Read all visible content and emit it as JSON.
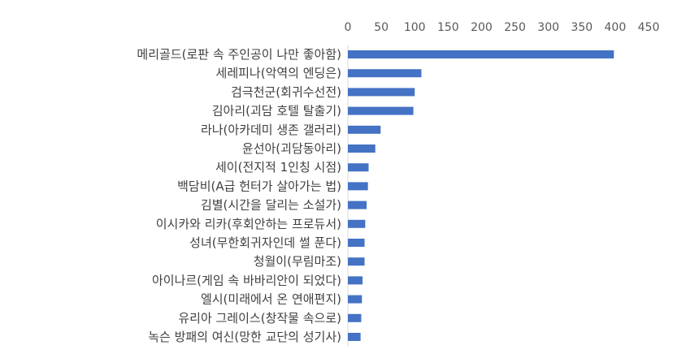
{
  "chart_data": {
    "type": "bar",
    "orientation": "horizontal",
    "title": "",
    "xlabel": "",
    "ylabel": "",
    "xlim": [
      0,
      450
    ],
    "x_ticks": [
      0,
      50,
      100,
      150,
      200,
      250,
      300,
      350,
      400,
      450
    ],
    "x_axis_position": "top",
    "grid": false,
    "legend": "none",
    "bar_color": "#4472C4",
    "categories": [
      "메리골드(로판 속 주인공이 나만 좋아함)",
      "세레피나(악역의 엔딩은)",
      "검극천군(회귀수선전)",
      "김아리(괴담 호텔 탈출기)",
      "라나(아카데미 생존 갤러리)",
      "윤선아(괴담동아리)",
      "세이(전지적 1인칭 시점)",
      "백담비(A급 헌터가 살아가는 법)",
      "김별(시간을 달리는 소설가)",
      "이시카와 리카(후회안하는 프로듀서)",
      "성녀(무한회귀자인데 썰 푼다)",
      "청월이(무림마조)",
      "아이나르(게임 속 바바리안이 되었다)",
      "엘시(미래에서 온 연애편지)",
      "유리아 그레이스(창작물 속으로)",
      "녹슨 방패의 여신(망한 교단의 성기사)"
    ],
    "values": [
      398,
      110,
      100,
      98,
      49,
      41,
      31,
      30,
      28,
      26,
      25,
      25,
      22,
      21,
      20,
      19
    ]
  }
}
